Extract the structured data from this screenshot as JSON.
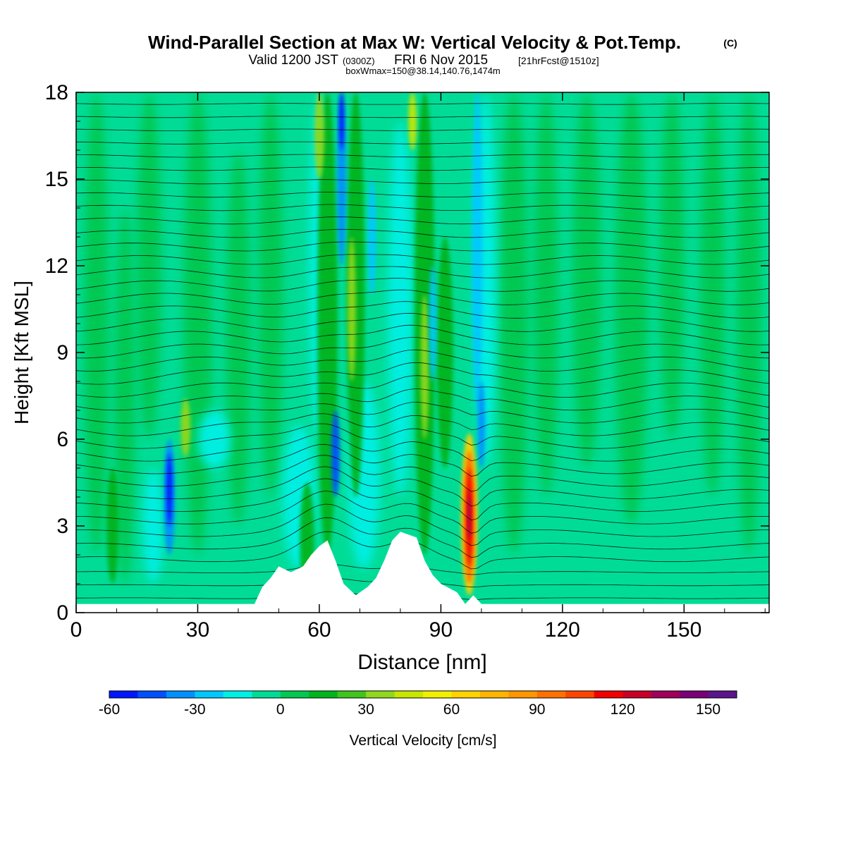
{
  "header": {
    "title": "Wind-Parallel Section at Max W: Vertical Velocity & Pot.Temp.",
    "copyright": "(C)",
    "valid_prefix": "Valid 1200 JST",
    "valid_utc": "(0300Z)",
    "valid_date": "FRI 6 Nov 2015",
    "forecast": "[21hrFcst@1510z]",
    "boxwmax": "boxWmax=150@38.14,140.76,1474m"
  },
  "chart_data": {
    "type": "heatmap",
    "title": "Wind-Parallel Section at Max W: Vertical Velocity & Pot.Temp.",
    "xlabel": "Distance [nm]",
    "ylabel": "Height [Kft MSL]",
    "xlim": [
      0,
      171
    ],
    "ylim": [
      0,
      18
    ],
    "x_ticks": [
      "0",
      "30",
      "60",
      "90",
      "120",
      "150"
    ],
    "y_ticks": [
      "0",
      "3",
      "6",
      "9",
      "12",
      "15",
      "18"
    ],
    "colorbar": {
      "label": "Vertical Velocity [cm/s]",
      "range": [
        -60,
        160
      ],
      "tick_labels": [
        "-60",
        "-30",
        "0",
        "30",
        "60",
        "90",
        "120",
        "150"
      ],
      "colors": [
        "#0018ff",
        "#0050ff",
        "#0090ff",
        "#00c8ff",
        "#00f0e6",
        "#00dc96",
        "#00c850",
        "#00b41e",
        "#40c41e",
        "#90d81e",
        "#c8e600",
        "#f0f000",
        "#ffd200",
        "#ffb400",
        "#ff9600",
        "#ff7000",
        "#ff4600",
        "#f00000",
        "#c80028",
        "#a0005a",
        "#780078",
        "#5a148c"
      ]
    },
    "terrain": {
      "description": "masked ground profile",
      "profile_x_nm": [
        44,
        46,
        48,
        50,
        53,
        56,
        58,
        60,
        62,
        64,
        66,
        69,
        72,
        74,
        76,
        78,
        80,
        84,
        86,
        88,
        90,
        94,
        96,
        98,
        100
      ],
      "profile_kft": [
        0.3,
        0.9,
        1.2,
        1.6,
        1.4,
        1.6,
        2.0,
        2.3,
        2.5,
        1.8,
        1.0,
        0.6,
        0.9,
        1.2,
        1.8,
        2.5,
        2.8,
        2.6,
        1.8,
        1.3,
        1.0,
        0.7,
        0.3,
        0.6,
        0.3
      ]
    },
    "features": [
      {
        "kind": "max_updraft",
        "x_nm": 97,
        "height_kft": [
          0.5,
          6.2
        ],
        "peak_cms": 150
      },
      {
        "kind": "updraft_band",
        "x_nm": [
          60,
          70
        ],
        "height_kft": [
          2,
          18
        ],
        "peak_cms": 40
      },
      {
        "kind": "downdraft_band",
        "x_nm": [
          64,
          67
        ],
        "height_kft": [
          4,
          18
        ],
        "peak_cms": -60
      },
      {
        "kind": "downdraft",
        "x_nm": 23,
        "height_kft": [
          1,
          6
        ],
        "peak_cms": -55
      },
      {
        "kind": "updraft",
        "x_nm": 27,
        "height_kft": [
          5,
          7.5
        ],
        "peak_cms": 40
      },
      {
        "kind": "updraft_band",
        "x_nm": [
          82,
          90
        ],
        "height_kft": [
          6,
          18
        ],
        "peak_cms": 45
      },
      {
        "kind": "downdraft_band",
        "x_nm": [
          98,
          104
        ],
        "height_kft": [
          4,
          18
        ],
        "peak_cms": -35
      }
    ],
    "isentropes": "potential temperature contours, evenly spaced, compressed above the mountain region"
  }
}
